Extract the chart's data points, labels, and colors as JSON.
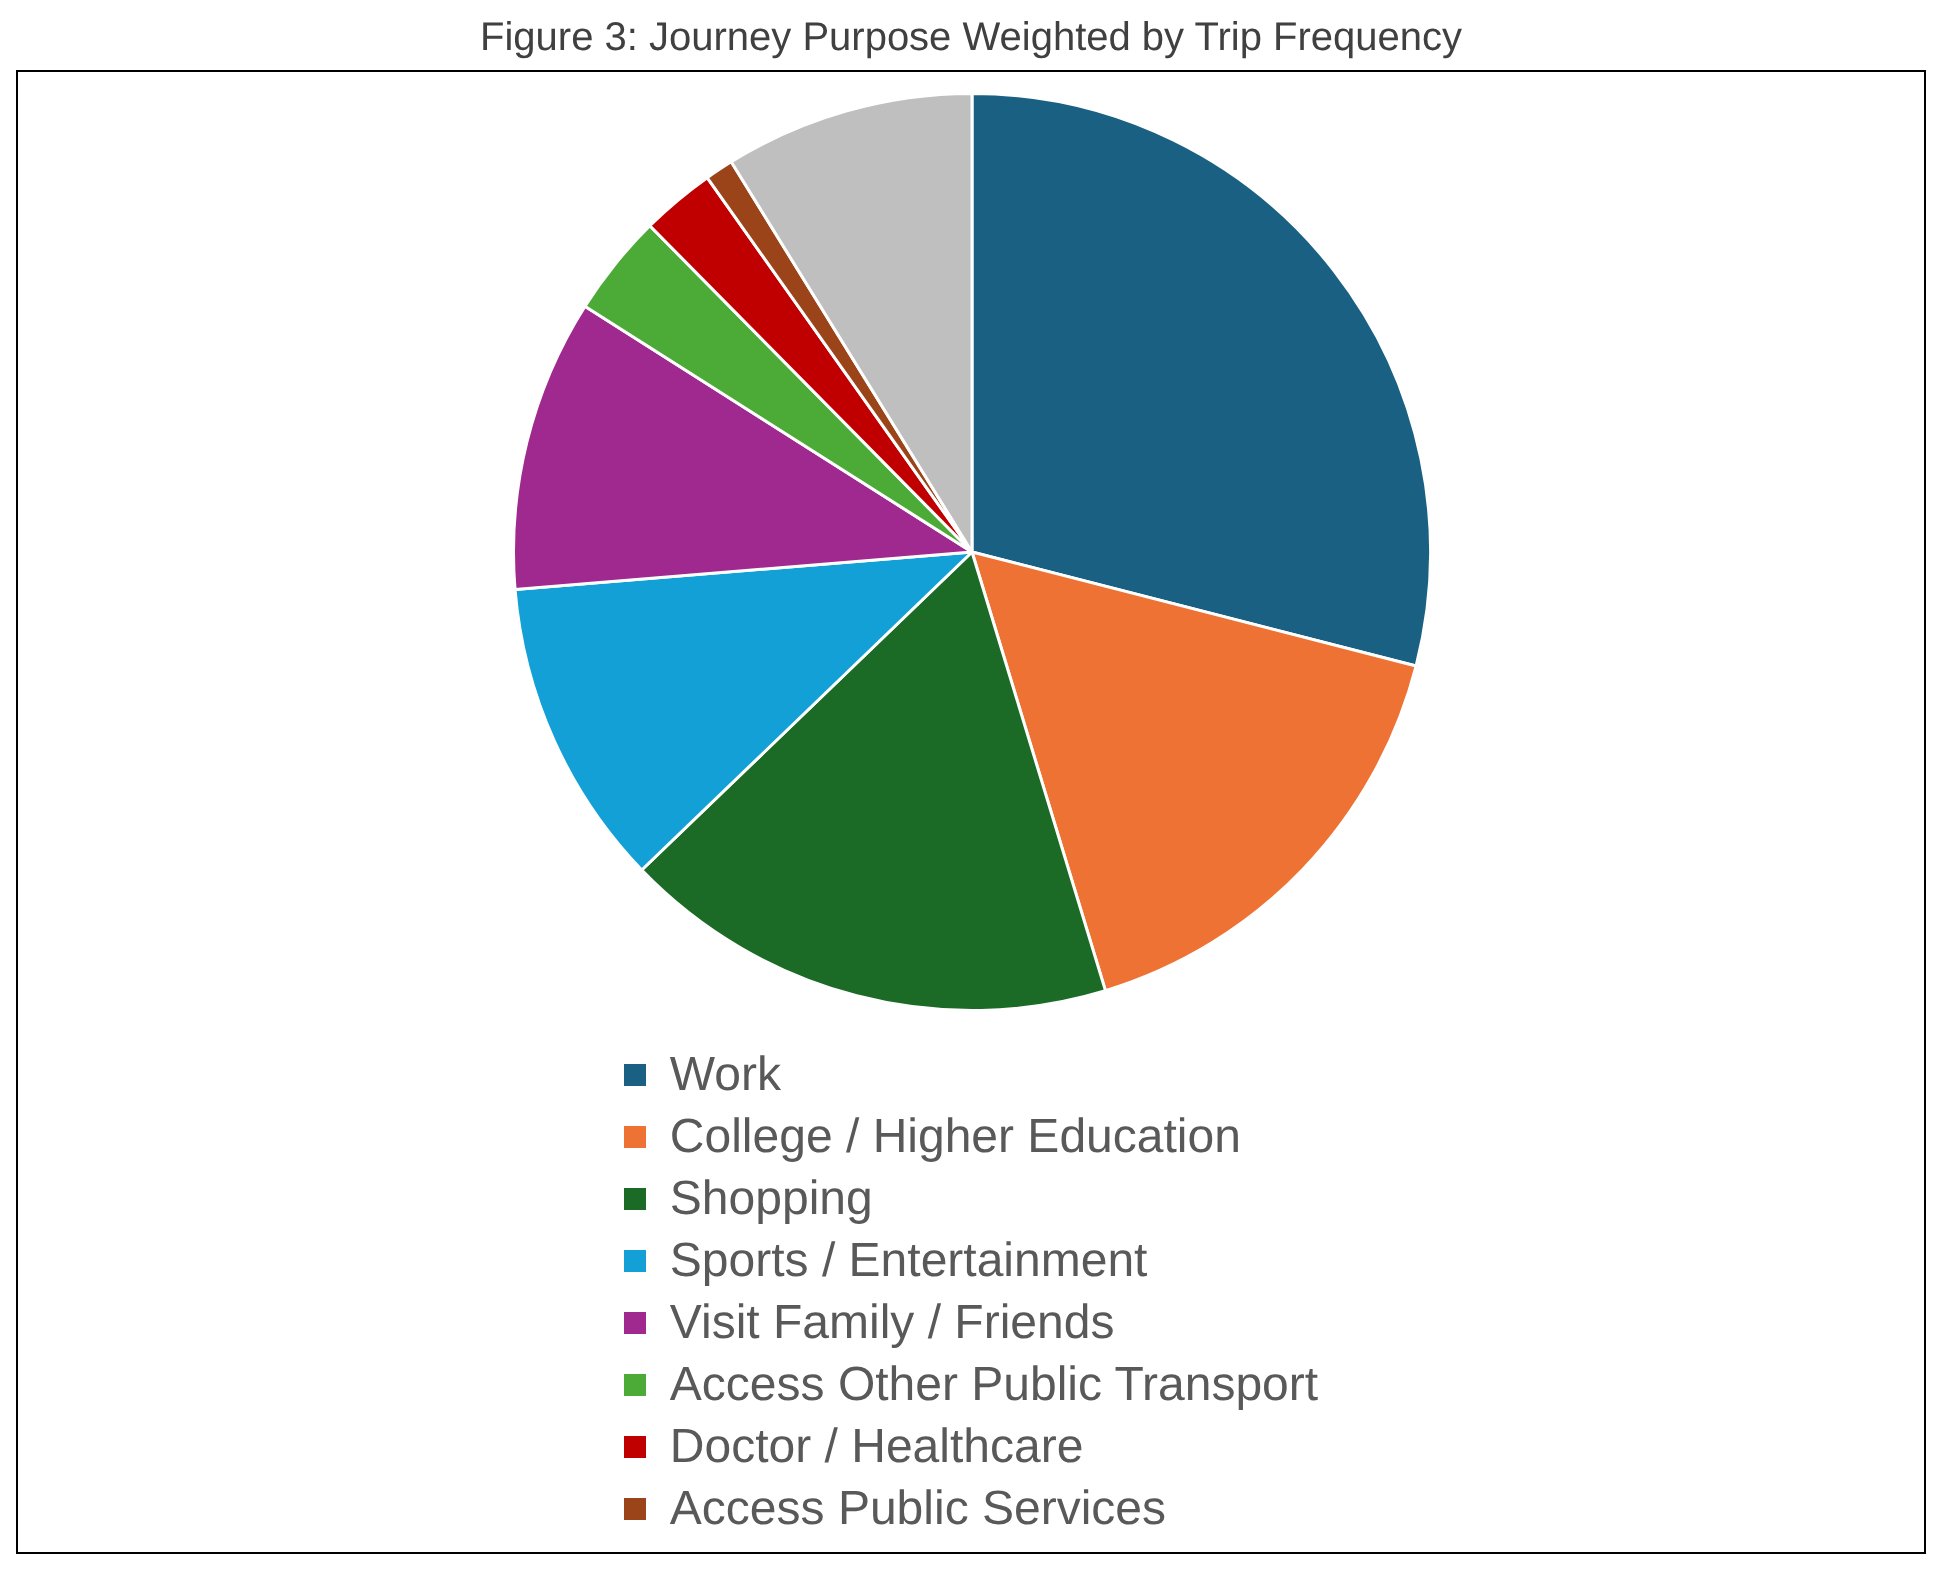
{
  "chart_data": {
    "type": "pie",
    "title": "Figure 3: Journey Purpose Weighted by Trip Frequency",
    "categories": [
      "Work",
      "College / Higher Education",
      "Shopping",
      "Sports / Entertainment",
      "Visit Family / Friends",
      "Access Other Public Transport",
      "Doctor / Healthcare",
      "Access Public Services",
      null
    ],
    "values": [
      29.0,
      16.3,
      17.5,
      10.9,
      10.3,
      3.6,
      2.6,
      1.0,
      8.8
    ],
    "colors": [
      "#1a6082",
      "#ed7233",
      "#1b6b27",
      "#12a0d6",
      "#a0298f",
      "#4caa36",
      "#c00000",
      "#9c4419",
      "#bfbfbf"
    ],
    "legend": "bottom"
  }
}
